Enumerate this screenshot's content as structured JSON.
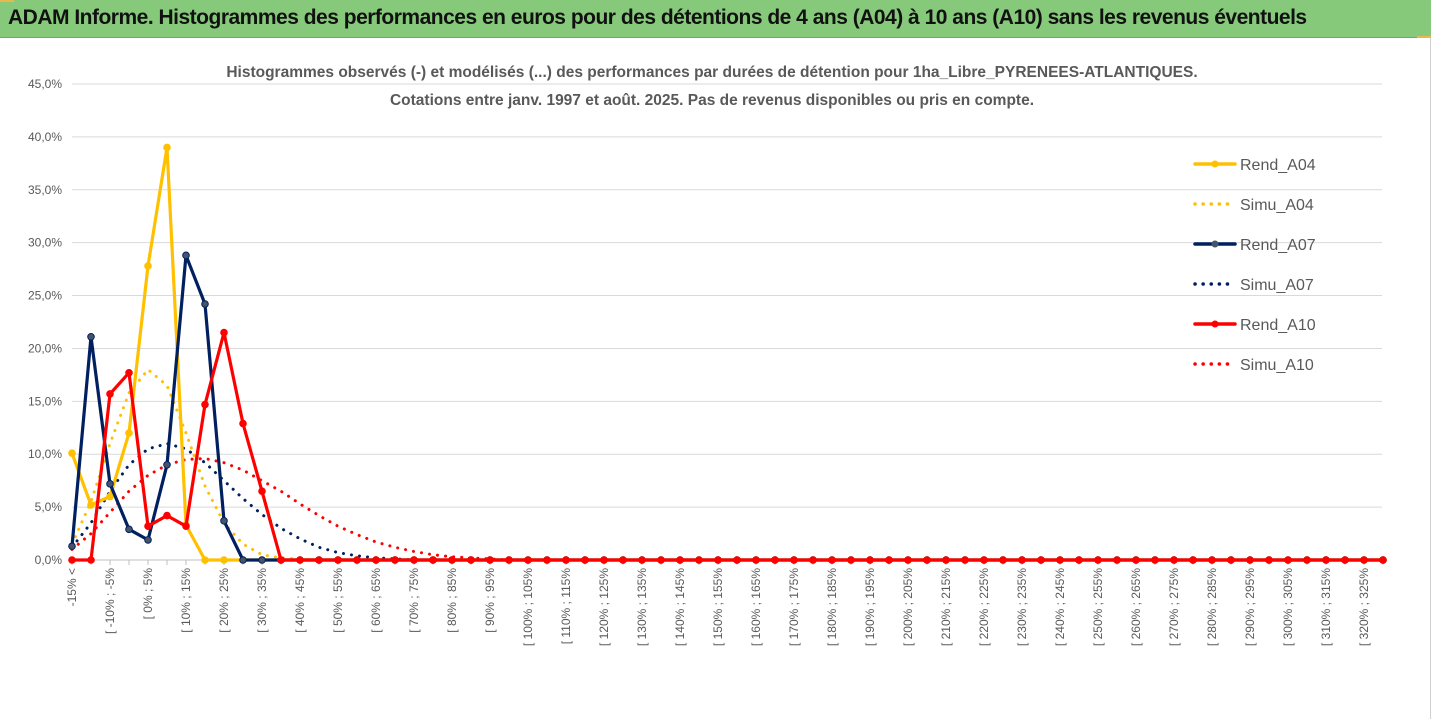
{
  "banner": {
    "title": "ADAM Informe. Histogrammes des performances en euros pour des détentions de 4 ans (A04) à 10 ans (A10) sans les revenus éventuels"
  },
  "colors": {
    "banner": "#86c97a",
    "A04": "#ffc000",
    "A07": "#002060",
    "A10": "#ff0000",
    "grid": "#d9d9d9",
    "text": "#595959"
  },
  "chart_data": {
    "type": "line",
    "title_lines": [
      "Histogrammes observés (-) et modélisés (...) des performances par durées de détention pour 1ha_Libre_PYRENEES-ATLANTIQUES.",
      "Cotations entre janv. 1997 et août. 2025. Pas de revenus disponibles ou pris en compte."
    ],
    "xlabel": "",
    "ylabel": "",
    "ylim": [
      0,
      45
    ],
    "yticks": [
      "0,0%",
      "5,0%",
      "10,0%",
      "15,0%",
      "20,0%",
      "25,0%",
      "30,0%",
      "35,0%",
      "40,0%",
      "45,0%"
    ],
    "grid": true,
    "legend_position": "top-right",
    "x_labels": [
      "-15% <",
      "",
      "[ -10% ; -5%",
      "",
      "[ 0% ; 5%",
      "",
      "[ 10% ; 15%",
      "",
      "[ 20% ; 25%",
      "",
      "[ 30% ; 35%",
      "",
      "[ 40% ; 45%",
      "",
      "[ 50% ; 55%",
      "",
      "[ 60% ; 65%",
      "",
      "[ 70% ; 75%",
      "",
      "[ 80% ; 85%",
      "",
      "[ 90% ; 95%",
      "",
      "[ 100% ; 105%",
      "",
      "[ 110% ; 115%",
      "",
      "[ 120% ; 125%",
      "",
      "[ 130% ; 135%",
      "",
      "[ 140% ; 145%",
      "",
      "[ 150% ; 155%",
      "",
      "[ 160% ; 165%",
      "",
      "[ 170% ; 175%",
      "",
      "[ 180% ; 185%",
      "",
      "[ 190% ; 195%",
      "",
      "[ 200% ; 205%",
      "",
      "[ 210% ; 215%",
      "",
      "[ 220% ; 225%",
      "",
      "[ 230% ; 235%",
      "",
      "[ 240% ; 245%",
      "",
      "[ 250% ; 255%",
      "",
      "[ 260% ; 265%",
      "",
      "[ 270% ; 275%",
      "",
      "[ 280% ; 285%",
      "",
      "[ 290% ; 295%",
      "",
      "[ 300% ; 305%",
      "",
      "[ 310% ; 315%",
      "",
      "[ 320% ; 325%",
      ""
    ],
    "series": [
      {
        "name": "Rend_A04",
        "color": "#ffc000",
        "style": "solid",
        "marker": true,
        "values": [
          10.1,
          5.2,
          6.0,
          12.0,
          27.8,
          39.0,
          3.3,
          0,
          0,
          0,
          0,
          0,
          0,
          0,
          0,
          0,
          0,
          0,
          0,
          0,
          0,
          0,
          0,
          0,
          0,
          0,
          0,
          0,
          0,
          0,
          0,
          0,
          0,
          0,
          0,
          0,
          0,
          0,
          0,
          0,
          0,
          0,
          0,
          0,
          0,
          0,
          0,
          0,
          0,
          0,
          0,
          0,
          0,
          0,
          0,
          0,
          0,
          0,
          0,
          0,
          0,
          0,
          0,
          0,
          0,
          0,
          0,
          0,
          0,
          0
        ]
      },
      {
        "name": "Simu_A04",
        "color": "#ffc000",
        "style": "dotted",
        "marker": false,
        "values": [
          1.5,
          5.5,
          11.0,
          15.8,
          18.0,
          16.5,
          12.0,
          7.0,
          3.5,
          1.5,
          0.5,
          0.2,
          0.1,
          0,
          0,
          0,
          0,
          0,
          0,
          0,
          0,
          0,
          0,
          0,
          0,
          0,
          0,
          0,
          0,
          0,
          0,
          0,
          0,
          0,
          0,
          0,
          0,
          0,
          0,
          0,
          0,
          0,
          0,
          0,
          0,
          0,
          0,
          0,
          0,
          0,
          0,
          0,
          0,
          0,
          0,
          0,
          0,
          0,
          0,
          0,
          0,
          0,
          0,
          0,
          0,
          0,
          0,
          0,
          0,
          0
        ]
      },
      {
        "name": "Rend_A07",
        "color": "#002060",
        "style": "solid",
        "marker": true,
        "values": [
          1.3,
          21.1,
          7.2,
          2.9,
          1.9,
          9.0,
          28.8,
          24.2,
          3.7,
          0,
          0,
          0,
          0,
          0,
          0,
          0,
          0,
          0,
          0,
          0,
          0,
          0,
          0,
          0,
          0,
          0,
          0,
          0,
          0,
          0,
          0,
          0,
          0,
          0,
          0,
          0,
          0,
          0,
          0,
          0,
          0,
          0,
          0,
          0,
          0,
          0,
          0,
          0,
          0,
          0,
          0,
          0,
          0,
          0,
          0,
          0,
          0,
          0,
          0,
          0,
          0,
          0,
          0,
          0,
          0,
          0,
          0,
          0,
          0,
          0
        ]
      },
      {
        "name": "Simu_A07",
        "color": "#002060",
        "style": "dotted",
        "marker": false,
        "values": [
          1.2,
          3.5,
          6.5,
          9.0,
          10.5,
          11.0,
          10.5,
          9.2,
          7.5,
          5.8,
          4.3,
          3.0,
          2.0,
          1.2,
          0.7,
          0.4,
          0.2,
          0.1,
          0,
          0,
          0,
          0,
          0,
          0,
          0,
          0,
          0,
          0,
          0,
          0,
          0,
          0,
          0,
          0,
          0,
          0,
          0,
          0,
          0,
          0,
          0,
          0,
          0,
          0,
          0,
          0,
          0,
          0,
          0,
          0,
          0,
          0,
          0,
          0,
          0,
          0,
          0,
          0,
          0,
          0,
          0,
          0,
          0,
          0,
          0,
          0,
          0,
          0,
          0,
          0
        ]
      },
      {
        "name": "Rend_A10",
        "color": "#ff0000",
        "style": "solid",
        "marker": true,
        "values": [
          0,
          0,
          15.7,
          17.7,
          3.2,
          4.2,
          3.2,
          14.7,
          21.5,
          12.9,
          6.5,
          0,
          0,
          0,
          0,
          0,
          0,
          0,
          0,
          0,
          0,
          0,
          0,
          0,
          0,
          0,
          0,
          0,
          0,
          0,
          0,
          0,
          0,
          0,
          0,
          0,
          0,
          0,
          0,
          0,
          0,
          0,
          0,
          0,
          0,
          0,
          0,
          0,
          0,
          0,
          0,
          0,
          0,
          0,
          0,
          0,
          0,
          0,
          0,
          0,
          0,
          0,
          0,
          0,
          0,
          0,
          0,
          0,
          0,
          0
        ]
      },
      {
        "name": "Simu_A10",
        "color": "#ff0000",
        "style": "dotted",
        "marker": false,
        "values": [
          1.0,
          2.5,
          4.5,
          6.5,
          8.0,
          9.0,
          9.5,
          9.6,
          9.2,
          8.5,
          7.5,
          6.5,
          5.3,
          4.2,
          3.2,
          2.4,
          1.7,
          1.2,
          0.8,
          0.5,
          0.3,
          0.2,
          0.1,
          0,
          0,
          0,
          0,
          0,
          0,
          0,
          0,
          0,
          0,
          0,
          0,
          0,
          0,
          0,
          0,
          0,
          0,
          0,
          0,
          0,
          0,
          0,
          0,
          0,
          0,
          0,
          0,
          0,
          0,
          0,
          0,
          0,
          0,
          0,
          0,
          0,
          0,
          0,
          0,
          0,
          0,
          0,
          0,
          0,
          0,
          0
        ]
      }
    ]
  }
}
